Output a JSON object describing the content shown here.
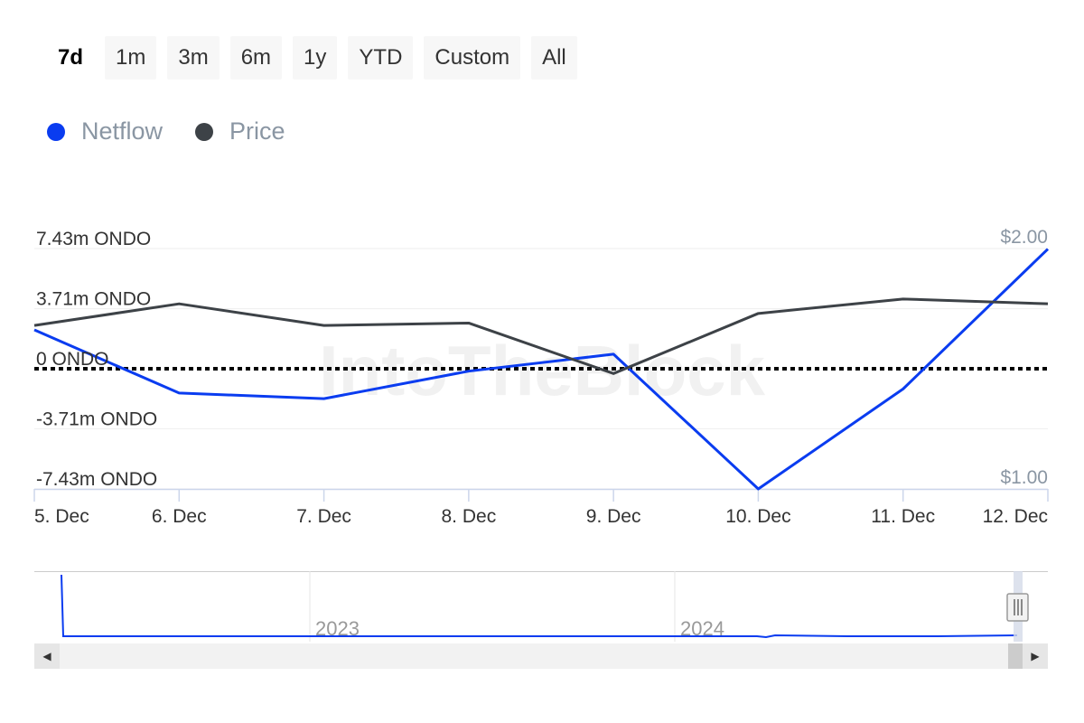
{
  "range_buttons": [
    {
      "label": "7d",
      "active": true
    },
    {
      "label": "1m",
      "active": false
    },
    {
      "label": "3m",
      "active": false
    },
    {
      "label": "6m",
      "active": false
    },
    {
      "label": "1y",
      "active": false
    },
    {
      "label": "YTD",
      "active": false
    },
    {
      "label": "Custom",
      "active": false
    },
    {
      "label": "All",
      "active": false
    }
  ],
  "legend": [
    {
      "label": "Netflow",
      "color": "#0a3cf0"
    },
    {
      "label": "Price",
      "color": "#3d4247"
    }
  ],
  "watermark": "IntoTheBlock",
  "navigator": {
    "labels": [
      "2023",
      "2024"
    ]
  },
  "chart_data": {
    "type": "line",
    "title": "",
    "categories": [
      "5. Dec",
      "6. Dec",
      "7. Dec",
      "8. Dec",
      "9. Dec",
      "10. Dec",
      "11. Dec",
      "12. Dec"
    ],
    "y_left": {
      "ticks": [
        7.43,
        3.71,
        0,
        -3.71,
        -7.43
      ],
      "tick_labels": [
        "7.43m ONDO",
        "3.71m ONDO",
        "0 ONDO",
        "-3.71m ONDO",
        "-7.43m ONDO"
      ],
      "range": [
        -7.43,
        7.43
      ]
    },
    "y_right": {
      "tick_labels": [
        "$2.00",
        "$1.00"
      ],
      "range": [
        1.0,
        2.0
      ]
    },
    "zero_line": true,
    "series": [
      {
        "name": "Netflow",
        "axis": "left",
        "color": "#0a3cf0",
        "values": [
          2.4,
          -1.5,
          -1.85,
          -0.15,
          0.9,
          -7.43,
          -1.25,
          7.4
        ]
      },
      {
        "name": "Price",
        "axis": "left_equiv",
        "color": "#3d4247",
        "values": [
          1.68,
          1.77,
          1.68,
          1.69,
          1.48,
          1.73,
          1.79,
          1.77
        ]
      }
    ]
  }
}
